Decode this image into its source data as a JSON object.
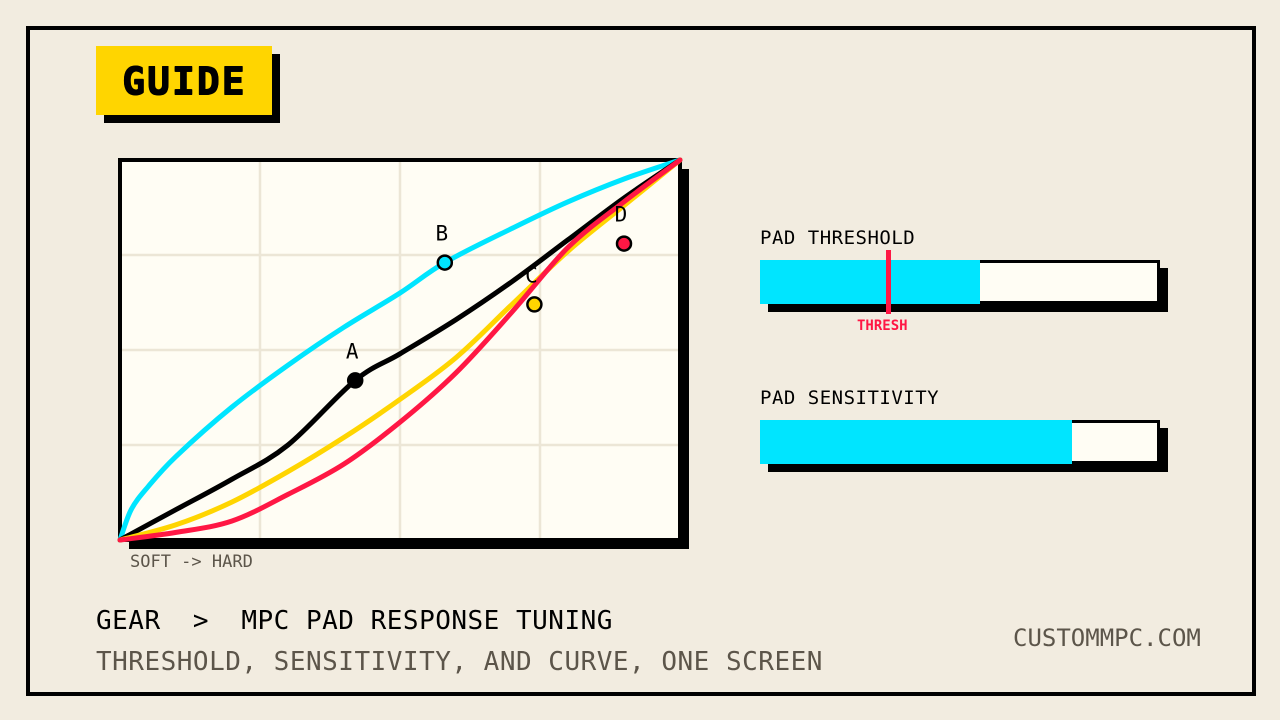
{
  "badge": {
    "label": "GUIDE"
  },
  "chart_data": {
    "type": "line",
    "xlabel": "SOFT -> HARD",
    "ylabel": "",
    "xlim": [
      0,
      100
    ],
    "ylim": [
      0,
      100
    ],
    "grid": true,
    "legend": "none",
    "series": [
      {
        "color": "#00e5ff",
        "points": [
          [
            0,
            0
          ],
          [
            2,
            8
          ],
          [
            5,
            14
          ],
          [
            10,
            22
          ],
          [
            20,
            35
          ],
          [
            30,
            46
          ],
          [
            40,
            56
          ],
          [
            50,
            65
          ],
          [
            58,
            73
          ],
          [
            70,
            82
          ],
          [
            80,
            89
          ],
          [
            90,
            95
          ],
          [
            100,
            100
          ]
        ]
      },
      {
        "color": "#000000",
        "points": [
          [
            0,
            0
          ],
          [
            10,
            8
          ],
          [
            20,
            16
          ],
          [
            30,
            25
          ],
          [
            42,
            42
          ],
          [
            50,
            49
          ],
          [
            60,
            58
          ],
          [
            70,
            68
          ],
          [
            80,
            79
          ],
          [
            90,
            90
          ],
          [
            100,
            100
          ]
        ]
      },
      {
        "color": "#ffd500",
        "points": [
          [
            0,
            0
          ],
          [
            10,
            4
          ],
          [
            20,
            10
          ],
          [
            30,
            18
          ],
          [
            40,
            27
          ],
          [
            50,
            37
          ],
          [
            60,
            48
          ],
          [
            70,
            62
          ],
          [
            80,
            76
          ],
          [
            90,
            88
          ],
          [
            100,
            100
          ]
        ]
      },
      {
        "color": "#ff1744",
        "points": [
          [
            0,
            0
          ],
          [
            10,
            2
          ],
          [
            20,
            5
          ],
          [
            30,
            12
          ],
          [
            40,
            20
          ],
          [
            50,
            31
          ],
          [
            60,
            44
          ],
          [
            70,
            60
          ],
          [
            80,
            77
          ],
          [
            90,
            89
          ],
          [
            100,
            100
          ]
        ]
      }
    ],
    "points": [
      {
        "label": "A",
        "x": 42,
        "y": 42,
        "color": "#000000"
      },
      {
        "label": "B",
        "x": 58,
        "y": 73,
        "color": "#00e5ff"
      },
      {
        "label": "C",
        "x": 74,
        "y": 62,
        "color": "#ffd500"
      },
      {
        "label": "D",
        "x": 90,
        "y": 78,
        "color": "#ff1744"
      }
    ]
  },
  "sliders": {
    "threshold": {
      "label": "PAD THRESHOLD",
      "value": 0.55,
      "marker_value": 0.32,
      "marker_label": "THRESH",
      "fill_color": "#00e5ff",
      "marker_color": "#ff1744"
    },
    "sensitivity": {
      "label": "PAD SENSITIVITY",
      "value": 0.78,
      "fill_color": "#00e5ff"
    }
  },
  "footer": {
    "breadcrumb": "GEAR  >  MPC PAD RESPONSE TUNING",
    "subtitle": "THRESHOLD, SENSITIVITY, AND CURVE, ONE SCREEN",
    "site": "CUSTOMMPC.COM"
  }
}
